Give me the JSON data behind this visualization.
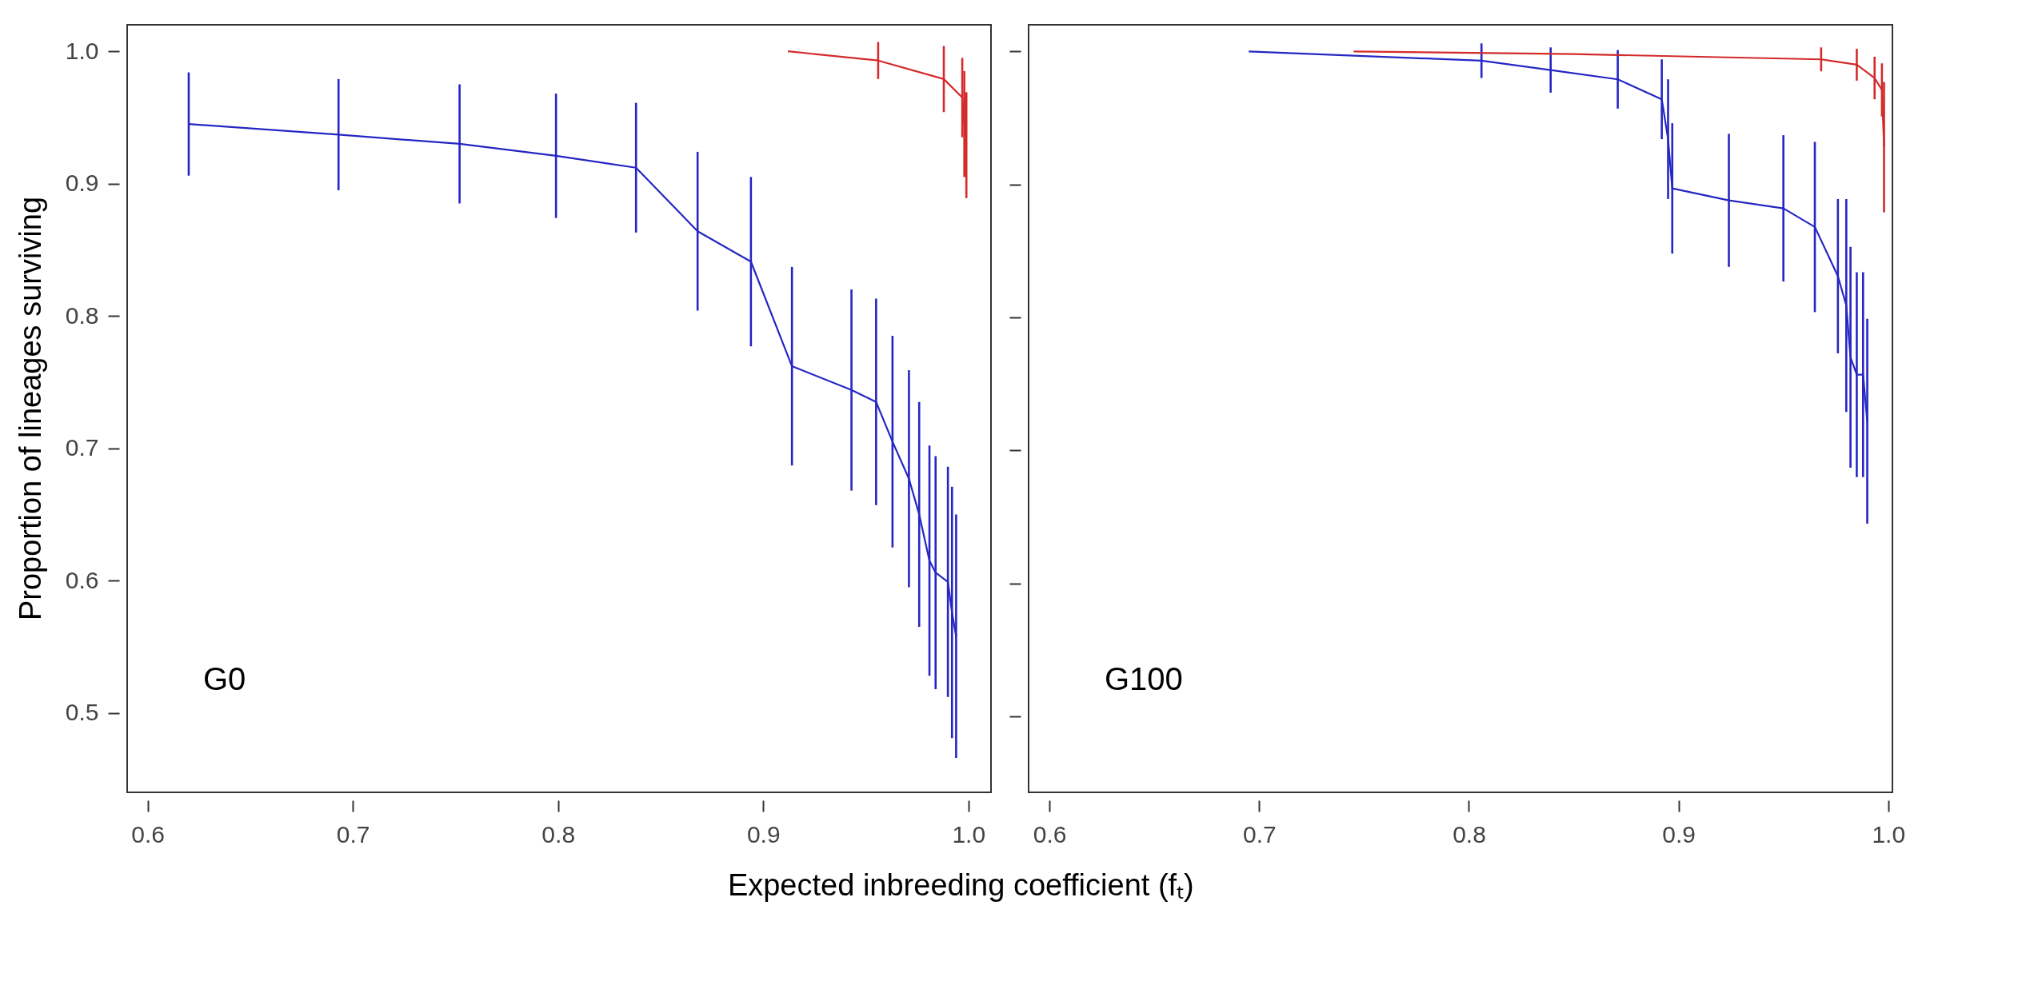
{
  "chart_data": [
    {
      "type": "line",
      "xlabel": "Expected inbreeding coefficient (fₜ)",
      "ylabel": "Proportion of lineages surviving",
      "annotations": [
        "G0"
      ],
      "xlim": [
        0.59,
        1.011
      ],
      "ylim": [
        0.44,
        1.02
      ],
      "xticks": [
        0.6,
        0.7,
        0.8,
        0.9,
        {
          "value": 1,
          "label": "1.0"
        }
      ],
      "yticks": [
        0.5,
        0.6,
        0.7,
        0.8,
        0.9,
        {
          "value": 1,
          "label": "1.0"
        }
      ],
      "grid": false,
      "marker": "none",
      "line_style": "solid",
      "series": [
        {
          "color": "#2626c4",
          "x": [
            0.62,
            0.693,
            0.752,
            0.799,
            0.838,
            0.868,
            0.894,
            0.914,
            0.943,
            0.955,
            0.963,
            0.971,
            0.976,
            0.981,
            0.984,
            0.99,
            0.992,
            0.994
          ],
          "values": [
            0.945,
            0.937,
            0.93,
            0.921,
            0.912,
            0.864,
            0.841,
            0.762,
            0.744,
            0.735,
            0.705,
            0.677,
            0.65,
            0.615,
            0.606,
            0.599,
            0.576,
            0.558
          ],
          "errors": [
            0.039,
            0.042,
            0.045,
            0.047,
            0.049,
            0.06,
            0.064,
            0.075,
            0.076,
            0.078,
            0.08,
            0.082,
            0.085,
            0.087,
            0.088,
            0.087,
            0.095,
            0.092
          ]
        },
        {
          "color": "#d42a2a",
          "x": [
            0.912,
            0.956,
            0.988,
            0.997,
            0.998,
            0.999
          ],
          "values": [
            1.0,
            0.993,
            0.979,
            0.965,
            0.945,
            0.929
          ],
          "errors": [
            null,
            0.014,
            0.025,
            0.03,
            0.04,
            0.04
          ]
        }
      ]
    },
    {
      "type": "line",
      "annotations": [
        "G100"
      ],
      "tick_labels": "x",
      "xlim": [
        0.59,
        1.002
      ],
      "ylim": [
        0.443,
        1.02
      ],
      "xticks": [
        0.6,
        0.7,
        0.8,
        0.9,
        {
          "value": 1,
          "label": "1.0"
        }
      ],
      "yticks": [
        0.5,
        0.6,
        0.7,
        0.8,
        0.9,
        1
      ],
      "grid": false,
      "marker": "none",
      "line_style": "solid",
      "series": [
        {
          "color": "#2626c4",
          "x": [
            0.695,
            0.806,
            0.839,
            0.871,
            0.892,
            0.895,
            0.897,
            0.924,
            0.95,
            0.965,
            0.976,
            0.98,
            0.982,
            0.985,
            0.988,
            0.99
          ],
          "values": [
            1.0,
            0.993,
            0.986,
            0.979,
            0.964,
            0.934,
            0.897,
            0.888,
            0.882,
            0.868,
            0.831,
            0.809,
            0.77,
            0.757,
            0.757,
            0.722
          ],
          "errors": [
            null,
            0.013,
            0.017,
            0.022,
            0.03,
            0.045,
            0.049,
            0.05,
            0.055,
            0.064,
            0.058,
            0.08,
            0.083,
            0.077,
            0.077,
            0.077
          ]
        },
        {
          "color": "#d42a2a",
          "x": [
            0.745,
            0.85,
            0.968,
            0.985,
            0.9935,
            0.997,
            0.998
          ],
          "values": [
            1.0,
            0.998,
            0.994,
            0.99,
            0.98,
            0.971,
            0.928
          ],
          "errors": [
            null,
            null,
            0.009,
            0.012,
            0.016,
            0.02,
            0.049
          ]
        }
      ]
    }
  ]
}
